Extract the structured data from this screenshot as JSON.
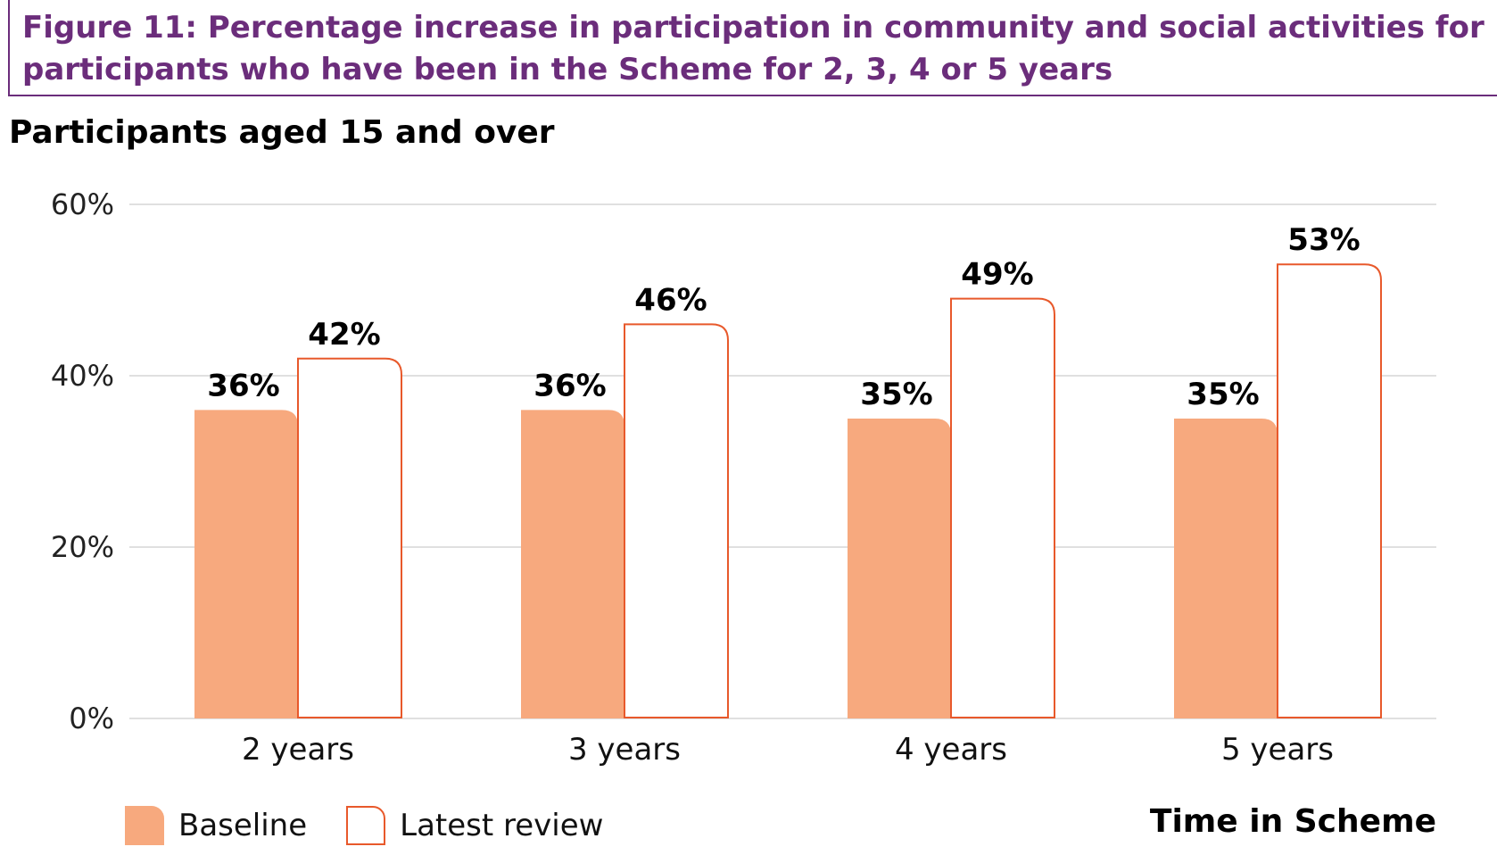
{
  "header": {
    "title": "Figure 11: Percentage increase in participation in community and social activities for\nparticipants who have been in the Scheme for 2, 3, 4 or 5 years",
    "subtitle": "Participants aged 15 and over"
  },
  "colors": {
    "title": "#6b2d7b",
    "baseline_fill": "#f7a97e",
    "latest_stroke": "#e8592b",
    "gridline": "#d6d6d6"
  },
  "chart_data": {
    "type": "bar",
    "title": "Figure 11: Percentage increase in participation in community and social activities for participants who have been in the Scheme for 2, 3, 4 or 5 years",
    "subtitle": "Participants aged 15 and over",
    "xlabel": "Time in Scheme",
    "ylabel": "",
    "categories": [
      "2 years",
      "3 years",
      "4 years",
      "5 years"
    ],
    "series": [
      {
        "name": "Baseline",
        "values": [
          36,
          36,
          35,
          35
        ],
        "labels": [
          "36%",
          "36%",
          "35%",
          "35%"
        ]
      },
      {
        "name": "Latest review",
        "values": [
          42,
          46,
          49,
          53
        ],
        "labels": [
          "42%",
          "46%",
          "49%",
          "53%"
        ]
      }
    ],
    "ylim": [
      0,
      60
    ],
    "yticks": [
      0,
      20,
      40,
      60
    ],
    "ytick_labels": [
      "0%",
      "20%",
      "40%",
      "60%"
    ],
    "grid": true,
    "legend_position": "bottom-left"
  }
}
